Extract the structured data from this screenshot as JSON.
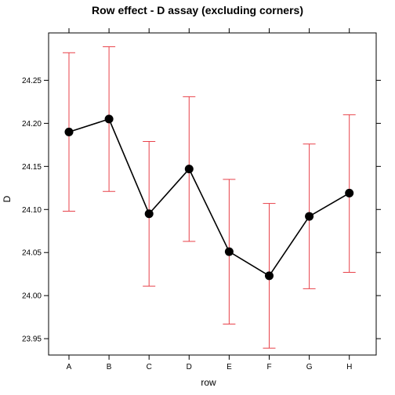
{
  "chart_data": {
    "type": "line",
    "title": "Row effect - D assay (excluding corners)",
    "xlabel": "row",
    "ylabel": "D",
    "categories": [
      "A",
      "B",
      "C",
      "D",
      "E",
      "F",
      "G",
      "H"
    ],
    "values": [
      24.19,
      24.205,
      24.095,
      24.147,
      24.051,
      24.023,
      24.092,
      24.119
    ],
    "error_upper": [
      24.282,
      24.289,
      24.179,
      24.231,
      24.135,
      24.107,
      24.176,
      24.21
    ],
    "error_lower": [
      24.098,
      24.121,
      24.011,
      24.063,
      23.967,
      23.939,
      24.008,
      24.027
    ],
    "yticks": [
      "23.95",
      "24.00",
      "24.05",
      "24.10",
      "24.15",
      "24.20",
      "24.25"
    ],
    "ylim": [
      23.931,
      24.305
    ],
    "grid": false,
    "colors": {
      "line": "#000000",
      "points": "#000000",
      "error_bars": "#e8424a"
    }
  }
}
